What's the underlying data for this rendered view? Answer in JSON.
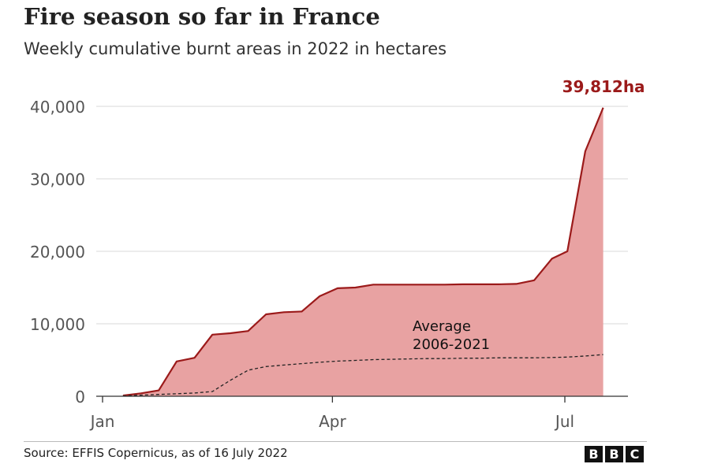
{
  "header": {
    "title": "Fire season so far in France",
    "subtitle": "Weekly cumulative burnt areas in 2022 in hectares"
  },
  "footer": {
    "source": "Source: EFFIS Copernicus, as of 16 July 2022",
    "logo_letters": [
      "B",
      "B",
      "C"
    ]
  },
  "colors": {
    "series_line": "#9b1a1a",
    "series_fill": "#e8a2a2",
    "average_line": "#222222",
    "grid": "#d9d9d9",
    "tick_text": "#555555",
    "end_label": "#9b1a1a"
  },
  "chart_data": {
    "type": "area",
    "x_unit": "day of year 2022",
    "ylim": [
      0,
      40000
    ],
    "xlim": [
      1,
      212
    ],
    "y_ticks": [
      {
        "value": 0,
        "label": "0"
      },
      {
        "value": 10000,
        "label": "10,000"
      },
      {
        "value": 20000,
        "label": "20,000"
      },
      {
        "value": 30000,
        "label": "30,000"
      },
      {
        "value": 40000,
        "label": "40,000"
      }
    ],
    "x_ticks": [
      {
        "value": 1,
        "label": "Jan"
      },
      {
        "value": 91,
        "label": "Apr"
      },
      {
        "value": 182,
        "label": "Jul"
      }
    ],
    "grid": true,
    "end_label": "39,812ha",
    "series": [
      {
        "style": "area",
        "points": [
          [
            9,
            100
          ],
          [
            16,
            400
          ],
          [
            23,
            800
          ],
          [
            30,
            4800
          ],
          [
            37,
            5300
          ],
          [
            44,
            8500
          ],
          [
            51,
            8700
          ],
          [
            58,
            9000
          ],
          [
            65,
            11300
          ],
          [
            72,
            11600
          ],
          [
            79,
            11700
          ],
          [
            86,
            13800
          ],
          [
            93,
            14900
          ],
          [
            100,
            15000
          ],
          [
            107,
            15400
          ],
          [
            114,
            15400
          ],
          [
            121,
            15400
          ],
          [
            128,
            15400
          ],
          [
            135,
            15400
          ],
          [
            142,
            15450
          ],
          [
            149,
            15450
          ],
          [
            156,
            15450
          ],
          [
            163,
            15500
          ],
          [
            170,
            16000
          ],
          [
            177,
            19000
          ],
          [
            183,
            20000
          ],
          [
            190,
            33800
          ],
          [
            197,
            39812
          ]
        ]
      },
      {
        "name": "Average\n2006-2021",
        "label_lines": [
          "Average",
          "2006-2021"
        ],
        "style": "dashed",
        "points": [
          [
            9,
            50
          ],
          [
            16,
            150
          ],
          [
            23,
            250
          ],
          [
            30,
            350
          ],
          [
            37,
            450
          ],
          [
            44,
            650
          ],
          [
            51,
            2200
          ],
          [
            58,
            3600
          ],
          [
            65,
            4100
          ],
          [
            72,
            4300
          ],
          [
            79,
            4500
          ],
          [
            86,
            4700
          ],
          [
            93,
            4850
          ],
          [
            100,
            4950
          ],
          [
            107,
            5050
          ],
          [
            114,
            5100
          ],
          [
            121,
            5150
          ],
          [
            128,
            5200
          ],
          [
            135,
            5200
          ],
          [
            142,
            5250
          ],
          [
            149,
            5250
          ],
          [
            156,
            5300
          ],
          [
            163,
            5300
          ],
          [
            170,
            5300
          ],
          [
            177,
            5350
          ],
          [
            183,
            5400
          ],
          [
            190,
            5550
          ],
          [
            197,
            5750
          ]
        ]
      }
    ]
  }
}
